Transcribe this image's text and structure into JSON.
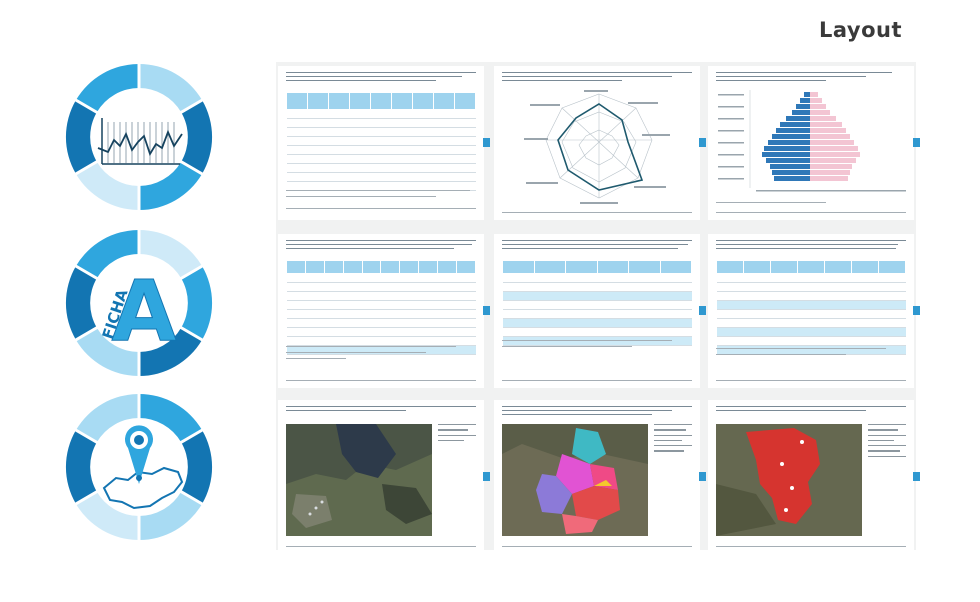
{
  "header": {
    "title": "Layout"
  },
  "icons": [
    {
      "name": "chart-icon"
    },
    {
      "name": "ficha-a-icon",
      "label_text": "FICHA",
      "letter": "A"
    },
    {
      "name": "location-map-icon"
    }
  ],
  "colors": {
    "dark": "#1375b2",
    "mid": "#2fa6de",
    "light": "#a8dbf3",
    "pale": "#cfeaf8",
    "accent_red": "#e0302c"
  },
  "pages": [
    {
      "name": "table-page",
      "type": "table"
    },
    {
      "name": "radar-chart-page",
      "type": "radar"
    },
    {
      "name": "pyramid-chart-page",
      "type": "pyramid"
    },
    {
      "name": "table-page",
      "type": "table"
    },
    {
      "name": "table-page",
      "type": "table"
    },
    {
      "name": "table-page",
      "type": "table"
    },
    {
      "name": "satellite-map-page",
      "type": "map"
    },
    {
      "name": "district-map-page",
      "type": "map"
    },
    {
      "name": "red-area-map-page",
      "type": "map"
    }
  ]
}
